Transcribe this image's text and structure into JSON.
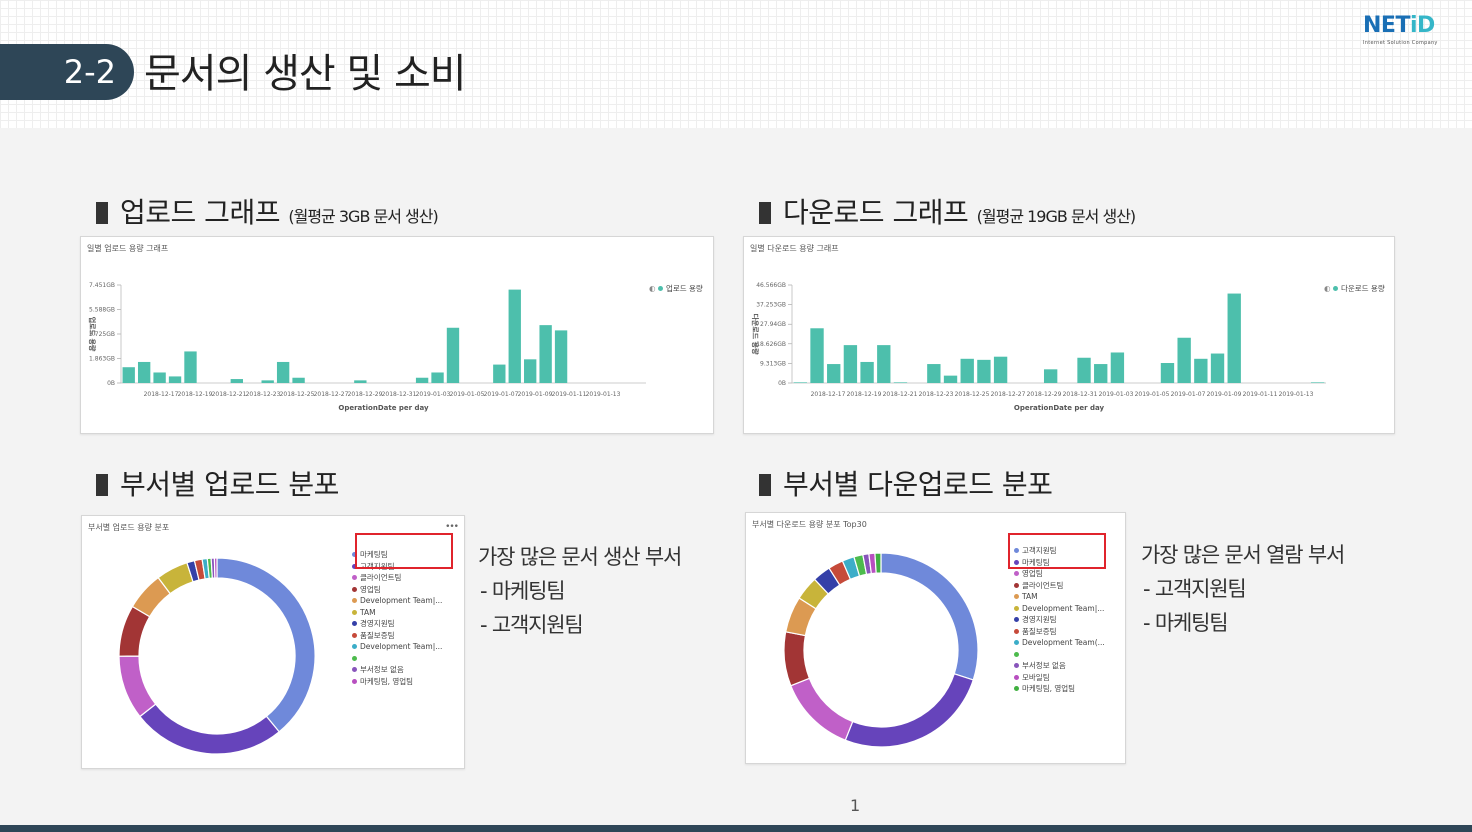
{
  "header": {
    "section_number": "2-2",
    "section_title": "문서의 생산 및 소비",
    "logo_main": "NET",
    "logo_accent": "iD",
    "logo_tagline": "Internet Solution Company"
  },
  "upload_section": {
    "heading": "업로드 그래프",
    "subheading": "(월평균 3GB 문서 생산)",
    "panel_title": "일별 업로드 용량 그래프",
    "legend": "업로드 용량"
  },
  "download_section": {
    "heading": "다운로드 그래프",
    "subheading": "(월평균 19GB 문서 생산)",
    "panel_title": "일별 다운로드 용량 그래프",
    "legend": "다운로드 용량"
  },
  "dept_upload_section": {
    "heading": "부서별 업로드 분포",
    "panel_title": "부서별 업로드 용량 분포",
    "note_title": "가장 많은 문서 생산 부서",
    "note_items": [
      "- 마케팅팀",
      "- 고객지원팀"
    ]
  },
  "dept_download_section": {
    "heading": "부서별 다운업로드 분포",
    "panel_title": "부서별 다운로드 용량 분포 Top30",
    "note_title": "가장 많은 문서 열람 부서",
    "note_items": [
      "- 고객지원팀",
      "- 마케팅팀"
    ]
  },
  "footer": {
    "page_number": "1"
  },
  "colors": {
    "accent": "#2e4657",
    "bar": "#4dbfac",
    "highlight": "#e0242c"
  },
  "chart_data": [
    {
      "type": "bar",
      "title": "일별 업로드 용량 그래프",
      "xlabel": "OperationDate per day",
      "ylabel": "업로드 용량",
      "y_ticks": [
        "0B",
        "1.863GB",
        "3.725GB",
        "5.588GB",
        "7.451GB"
      ],
      "ylim": [
        0,
        7.451
      ],
      "x_ticks": [
        "2018-12-17",
        "2018-12-19",
        "2018-12-21",
        "2018-12-23",
        "2018-12-25",
        "2018-12-27",
        "2018-12-29",
        "2018-12-31",
        "2019-01-03",
        "2019-01-05",
        "2019-01-07",
        "2019-01-09",
        "2019-01-11",
        "2019-01-13"
      ],
      "series": [
        {
          "name": "업로드 용량",
          "values": [
            1.2,
            1.6,
            0.8,
            0.5,
            2.4,
            0,
            0,
            0.3,
            0,
            0.2,
            1.6,
            0.4,
            0,
            0,
            0,
            0.2,
            0,
            0,
            0,
            0.4,
            0.8,
            4.2,
            0,
            0,
            1.4,
            7.1,
            1.8,
            4.4,
            4.0,
            0,
            0,
            0,
            0,
            0
          ]
        }
      ],
      "legend_position": "top-right"
    },
    {
      "type": "bar",
      "title": "일별 다운로드 용량 그래프",
      "xlabel": "OperationDate per day",
      "ylabel": "다운로드 용량",
      "y_ticks": [
        "0B",
        "9.313GB",
        "18.626GB",
        "27.94GB",
        "37.253GB",
        "46.566GB"
      ],
      "ylim": [
        0,
        46.566
      ],
      "x_ticks": [
        "2018-12-17",
        "2018-12-19",
        "2018-12-21",
        "2018-12-23",
        "2018-12-25",
        "2018-12-27",
        "2018-12-29",
        "2018-12-31",
        "2019-01-03",
        "2019-01-05",
        "2019-01-07",
        "2019-01-09",
        "2019-01-11",
        "2019-01-13"
      ],
      "series": [
        {
          "name": "다운로드 용량",
          "values": [
            0.3,
            26,
            9,
            18,
            10,
            18,
            0.3,
            0,
            9,
            3.5,
            11.5,
            11,
            12.5,
            0,
            0,
            6.5,
            0,
            12,
            9,
            14.5,
            0,
            0,
            9.5,
            21.5,
            11.5,
            14,
            42.5,
            0,
            0,
            0,
            0,
            0.3
          ]
        }
      ],
      "legend_position": "top-right"
    },
    {
      "type": "pie",
      "title": "부서별 업로드 용량 분포",
      "labels": [
        "마케팅팀",
        "고객지원팀",
        "클라이언트팀",
        "영업팀",
        "Development Team|...",
        "TAM",
        "경영지원팀",
        "품질보증팀",
        "Development Team|...",
        "",
        "부서정보 없음",
        "마케팅팀, 영업팀"
      ],
      "values": [
        37,
        24,
        10,
        8,
        6,
        5,
        1.2,
        1.2,
        0.8,
        0.6,
        0.5,
        0.4
      ],
      "colors": [
        "#6f89da",
        "#6644bb",
        "#c060c8",
        "#a23535",
        "#dc9a52",
        "#c8b43a",
        "#3540a8",
        "#c64a3a",
        "#3cadc8",
        "#4dbb4d",
        "#8855bb",
        "#b84fc0"
      ],
      "legend_position": "right"
    },
    {
      "type": "pie",
      "title": "부서별 다운로드 용량 분포 Top30",
      "labels": [
        "고객지원팀",
        "마케팅팀",
        "영업팀",
        "클라이언트팀",
        "TAM",
        "Development Team|...",
        "경영지원팀",
        "품질보증팀",
        "Development Team(...",
        "",
        "부서정보 없음",
        "모바일팀",
        "마케팅팀, 영업팀"
      ],
      "values": [
        30,
        26,
        13,
        9,
        6,
        4,
        3,
        2.5,
        2,
        1.5,
        1,
        1,
        1
      ],
      "colors": [
        "#6f89da",
        "#6644bb",
        "#c060c8",
        "#a23535",
        "#dc9a52",
        "#c8b43a",
        "#3540a8",
        "#c64a3a",
        "#3cadc8",
        "#4dbb4d",
        "#8855bb",
        "#b84fc0",
        "#40b040"
      ],
      "legend_position": "right"
    }
  ]
}
